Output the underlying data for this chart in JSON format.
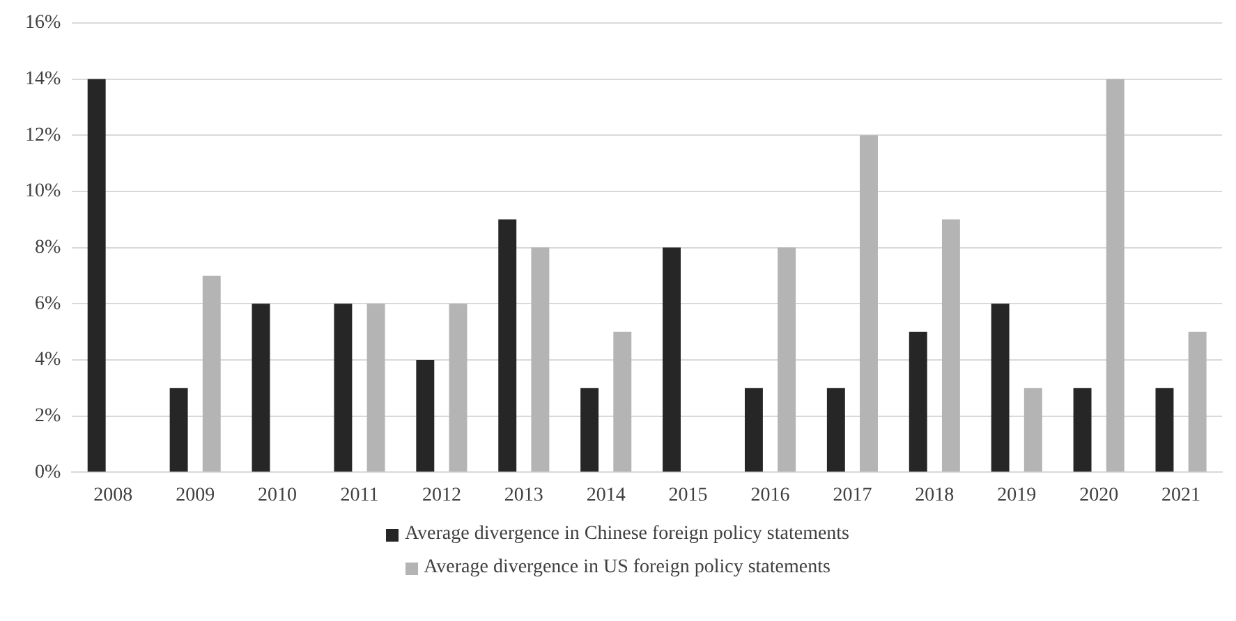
{
  "chart_data": {
    "type": "bar",
    "categories": [
      "2008",
      "2009",
      "2010",
      "2011",
      "2012",
      "2013",
      "2014",
      "2015",
      "2016",
      "2017",
      "2018",
      "2019",
      "2020",
      "2021"
    ],
    "series": [
      {
        "name": "Average divergence in Chinese foreign policy statements",
        "color": "#262626",
        "values": [
          14,
          3,
          6,
          6,
          4,
          9,
          3,
          8,
          3,
          3,
          5,
          6,
          3,
          3
        ]
      },
      {
        "name": "Average divergence in US foreign policy statements",
        "color": "#b4b4b4",
        "values": [
          0,
          7,
          0,
          6,
          6,
          8,
          5,
          0,
          8,
          12,
          9,
          3,
          14,
          5
        ]
      }
    ],
    "ylim": [
      0,
      16
    ],
    "yticks": [
      {
        "value": 0,
        "label": "0%"
      },
      {
        "value": 2,
        "label": "2%"
      },
      {
        "value": 4,
        "label": "4%"
      },
      {
        "value": 6,
        "label": "6%"
      },
      {
        "value": 8,
        "label": "8%"
      },
      {
        "value": 10,
        "label": "10%"
      },
      {
        "value": 12,
        "label": "12%"
      },
      {
        "value": 14,
        "label": "14%"
      },
      {
        "value": 16,
        "label": "16%"
      }
    ],
    "grid": "y",
    "legend": "bottom"
  }
}
